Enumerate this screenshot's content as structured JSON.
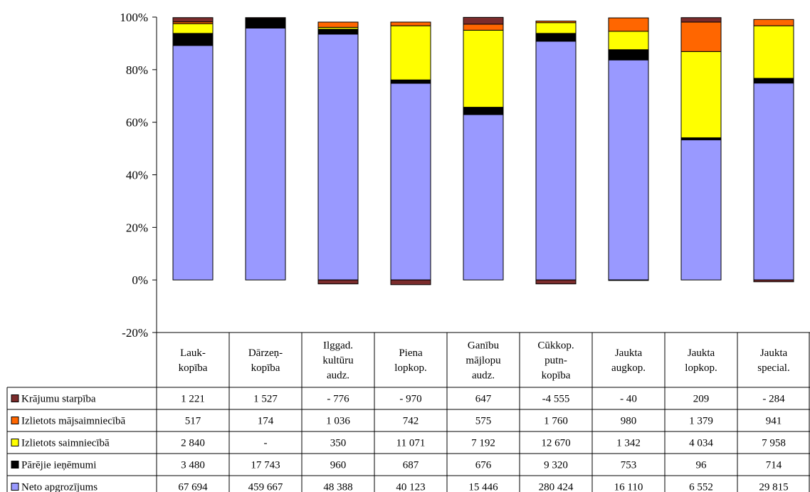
{
  "chart_data": {
    "type": "stacked-bar-100",
    "y_ticks": [
      "100%",
      "80%",
      "60%",
      "40%",
      "20%",
      "0%",
      "-20%"
    ],
    "ylim": [
      -20,
      100
    ],
    "categories": [
      [
        "Lauk-",
        "kopība"
      ],
      [
        "Dārzeņ-",
        "kopība"
      ],
      [
        "Ilggad.",
        "kultūru",
        "audz."
      ],
      [
        "Piena",
        "lopkop."
      ],
      [
        "Ganību",
        "mājlopu",
        "audz."
      ],
      [
        "Cūkkop.",
        "putn-",
        "kopība"
      ],
      [
        "Jaukta",
        "augkop."
      ],
      [
        "Jaukta",
        "lopkop."
      ],
      [
        "Jaukta",
        "special."
      ]
    ],
    "series": [
      {
        "name": "Neto apgrozījums",
        "color": "#9999ff",
        "values": [
          89.2,
          95.8,
          93.5,
          74.8,
          62.9,
          90.8,
          83.7,
          53.3,
          74.9
        ],
        "table": [
          "67 694",
          "459 667",
          "48 388",
          "40 123",
          "15 446",
          "280 424",
          "16 110",
          "6 552",
          "29 815"
        ]
      },
      {
        "name": "Pārējie ieņēmumi",
        "color": "#000000",
        "values": [
          4.6,
          3.7,
          1.9,
          1.3,
          2.8,
          3.0,
          3.9,
          0.8,
          1.8
        ],
        "table": [
          "3 480",
          "17 743",
          "960",
          "687",
          "676",
          "9 320",
          "753",
          "96",
          "714"
        ]
      },
      {
        "name": "Izlietots saimniecībā",
        "color": "#ffff00",
        "values": [
          3.7,
          0,
          0.7,
          20.6,
          29.3,
          4.1,
          7.0,
          32.8,
          20.0
        ],
        "table": [
          "2 840",
          "-",
          "350",
          "11 071",
          "7 192",
          "12 670",
          "1 342",
          "4 034",
          "7 958"
        ]
      },
      {
        "name": "Izlietots mājsaimniecībā",
        "color": "#ff6600",
        "values": [
          0.7,
          0.0,
          2.0,
          1.4,
          2.3,
          0.6,
          5.1,
          11.2,
          2.4
        ],
        "table": [
          "517",
          "174",
          "1 036",
          "742",
          "575",
          "1 760",
          "980",
          "1 379",
          "941"
        ]
      },
      {
        "name": "Krājumu starpība",
        "color": "#7b2c2c",
        "values": [
          1.6,
          0.3,
          -1.5,
          -1.8,
          2.6,
          -1.5,
          -0.2,
          1.7,
          -0.7
        ],
        "table": [
          "1 221",
          "1 527",
          "- 776",
          "- 970",
          "647",
          "-4 555",
          "- 40",
          "209",
          "- 284"
        ]
      }
    ],
    "table_row_order": [
      "Krājumu starpība",
      "Izlietots mājsaimniecībā",
      "Izlietots saimniecībā",
      "Pārējie ieņēmumi",
      "Neto apgrozījums"
    ],
    "grid": false,
    "legend": "table-left"
  }
}
